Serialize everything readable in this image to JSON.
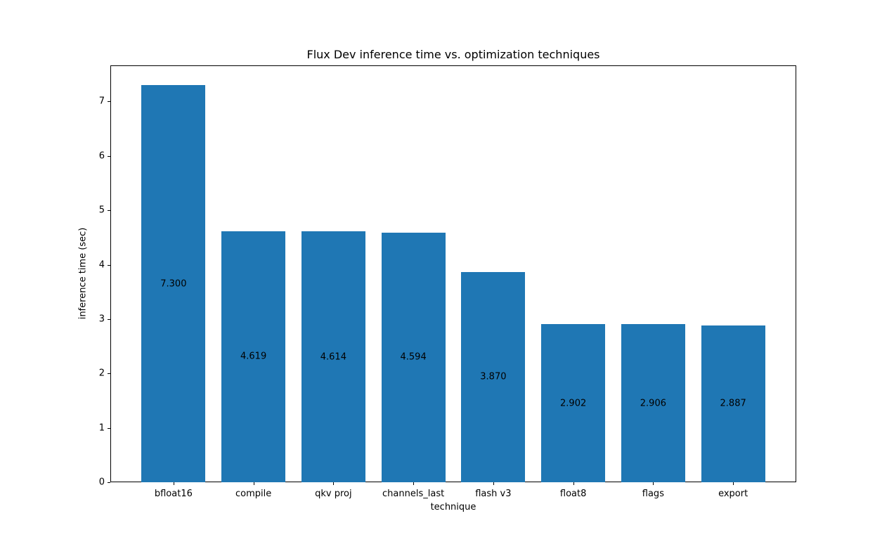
{
  "chart_data": {
    "type": "bar",
    "title": "Flux Dev inference time vs. optimization techniques",
    "xlabel": "technique",
    "ylabel": "inference time (sec)",
    "categories": [
      "bfloat16",
      "compile",
      "qkv proj",
      "channels_last",
      "flash v3",
      "float8",
      "flags",
      "export"
    ],
    "values": [
      7.3,
      4.619,
      4.614,
      4.594,
      3.87,
      2.902,
      2.906,
      2.887
    ],
    "value_labels": [
      "7.300",
      "4.619",
      "4.614",
      "4.594",
      "3.870",
      "2.902",
      "2.906",
      "2.887"
    ],
    "yticks": [
      0,
      1,
      2,
      3,
      4,
      5,
      6,
      7
    ],
    "ylim": [
      0,
      7.665
    ],
    "bar_width_fraction": 0.8,
    "bar_color": "#1f77b4",
    "text_color": "#000000",
    "background_color": "#ffffff",
    "grid": false,
    "legend": "none"
  }
}
